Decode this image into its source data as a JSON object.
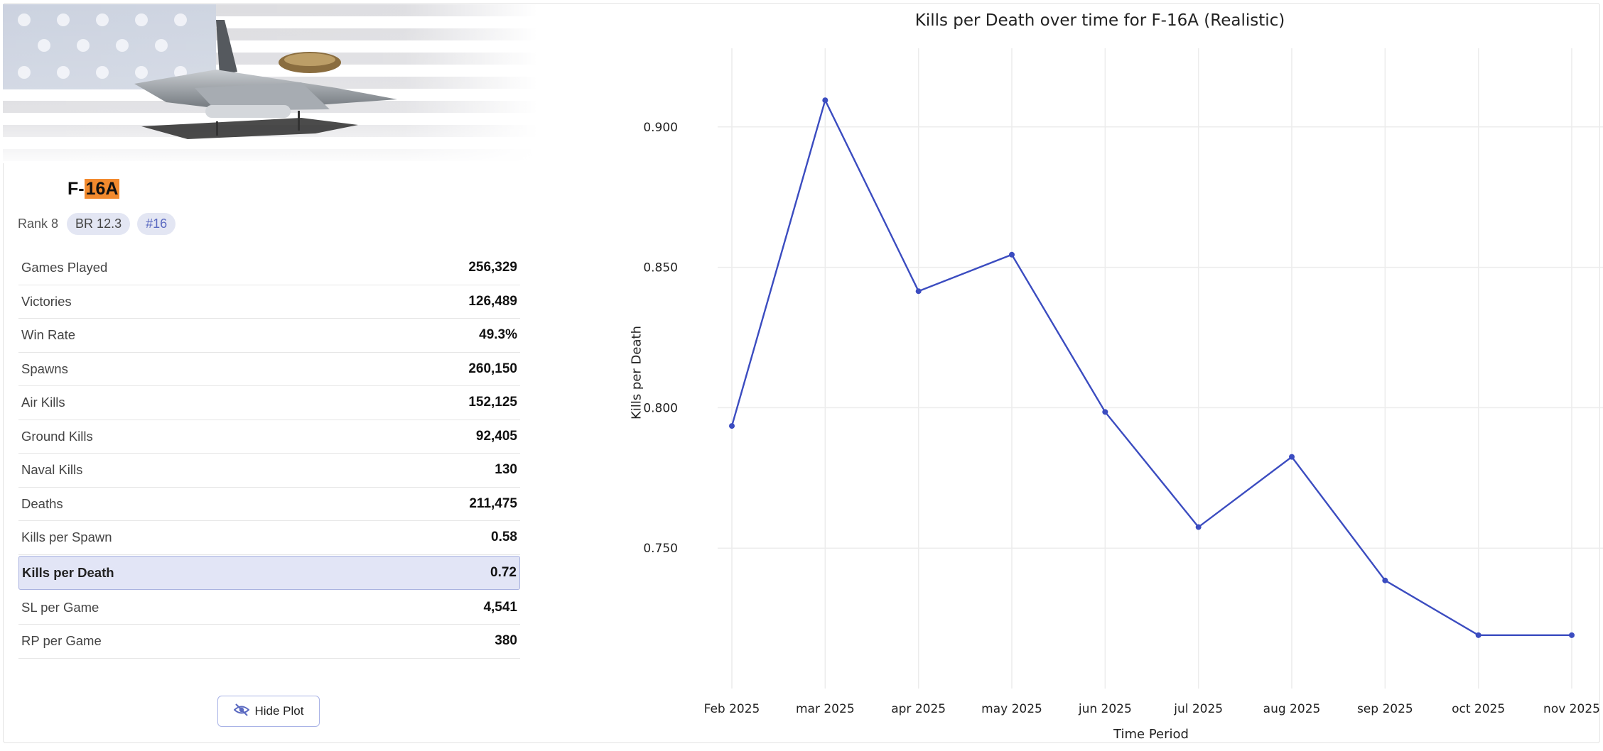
{
  "vehicle": {
    "name_prefix": "F-",
    "name_highlight": "16A",
    "rank": "Rank 8",
    "br": "BR 12.3",
    "index": "#16"
  },
  "stats": [
    {
      "label": "Games Played",
      "value": "256,329",
      "active": false
    },
    {
      "label": "Victories",
      "value": "126,489",
      "active": false
    },
    {
      "label": "Win Rate",
      "value": "49.3%",
      "active": false
    },
    {
      "label": "Spawns",
      "value": "260,150",
      "active": false
    },
    {
      "label": "Air Kills",
      "value": "152,125",
      "active": false
    },
    {
      "label": "Ground Kills",
      "value": "92,405",
      "active": false
    },
    {
      "label": "Naval Kills",
      "value": "130",
      "active": false
    },
    {
      "label": "Deaths",
      "value": "211,475",
      "active": false
    },
    {
      "label": "Kills per Spawn",
      "value": "0.58",
      "active": false
    },
    {
      "label": "Kills per Death",
      "value": "0.72",
      "active": true
    },
    {
      "label": "SL per Game",
      "value": "4,541",
      "active": false
    },
    {
      "label": "RP per Game",
      "value": "380",
      "active": false
    }
  ],
  "hide_plot_label": "Hide Plot",
  "icons": {
    "hide_plot": "eye-slash-icon"
  },
  "colors": {
    "accent": "#3b4cc0",
    "highlight": "#f28a2e",
    "active_row": "#e2e5f6"
  },
  "chart_data": {
    "type": "line",
    "title": "Kills per Death over time for F-16A (Realistic)",
    "xlabel": "Time Period",
    "ylabel": "Kills per Death",
    "categories": [
      "Feb 2025",
      "mar 2025",
      "apr 2025",
      "may 2025",
      "jun 2025",
      "jul 2025",
      "aug 2025",
      "sep 2025",
      "oct 2025",
      "nov 2025"
    ],
    "values": [
      0.7935,
      0.9095,
      0.8415,
      0.8545,
      0.7985,
      0.7575,
      0.7825,
      0.7385,
      0.719,
      0.719
    ],
    "yticks": [
      0.75,
      0.8,
      0.85,
      0.9
    ],
    "ytick_labels": [
      "0.750",
      "0.800",
      "0.850",
      "0.900"
    ],
    "ylim": [
      0.7,
      0.928
    ],
    "grid": true,
    "color": "#3b4cc0"
  }
}
